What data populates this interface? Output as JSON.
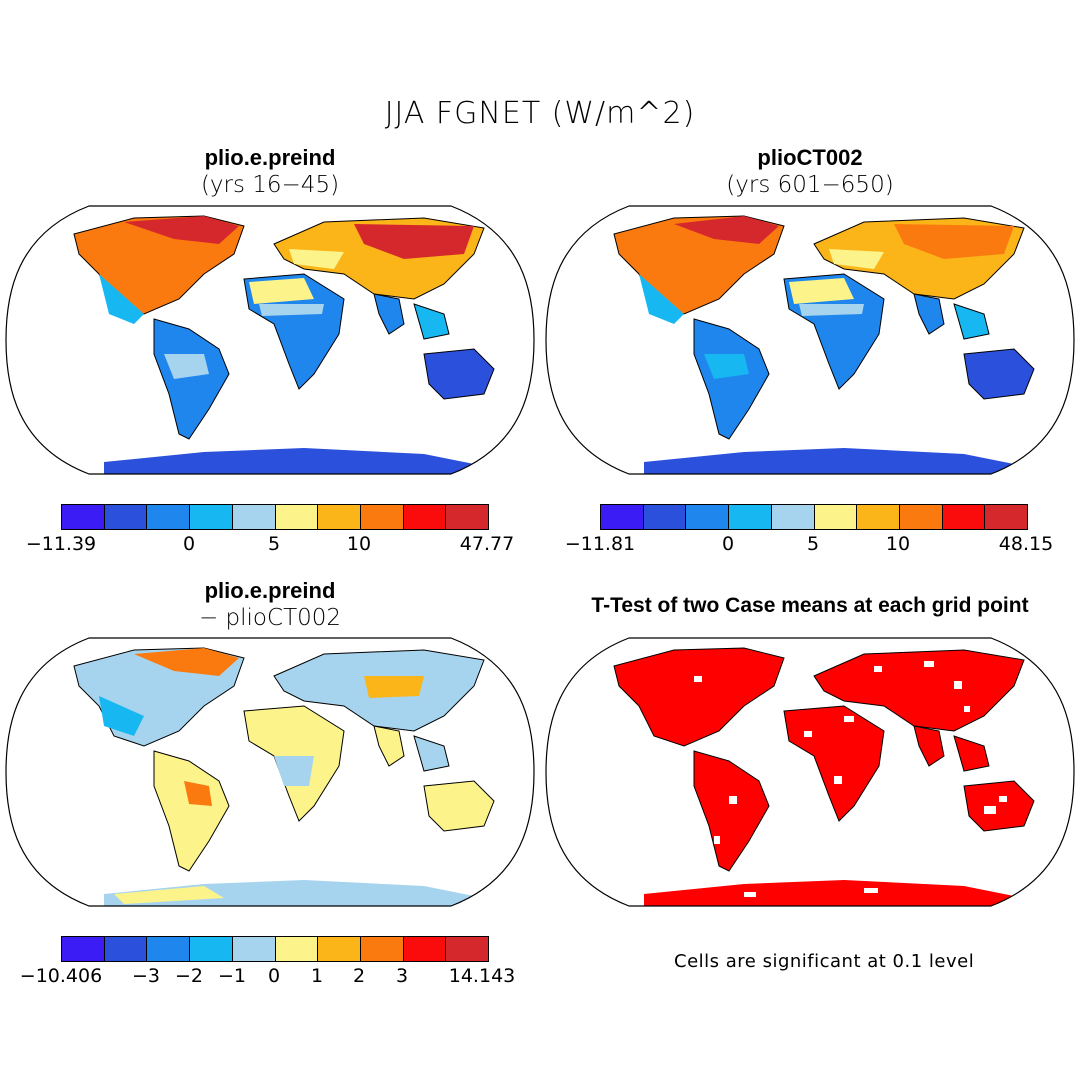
{
  "title": "JJA FGNET (W/m^2)",
  "palette": [
    "#3b1cf5",
    "#2b50dc",
    "#1f86ee",
    "#17b8f2",
    "#a6d4ef",
    "#fcf38a",
    "#fbb518",
    "#fa7a10",
    "#fa0c0c",
    "#d5282c"
  ],
  "significance_color": "#ff0000",
  "panels": [
    {
      "title": "plio.e.preind",
      "subtitle": "(yrs 16−45)",
      "ticks": [
        "−11.39",
        "0",
        "5",
        "10",
        "47.77"
      ]
    },
    {
      "title": "plioCT002",
      "subtitle": "(yrs 601−650)",
      "ticks": [
        "−11.81",
        "0",
        "5",
        "10",
        "48.15"
      ]
    },
    {
      "title": "plio.e.preind",
      "subtitle": "− plioCT002",
      "ticks": [
        "−10.406",
        "−3",
        "−2",
        "−1",
        "0",
        "1",
        "2",
        "3",
        "14.143"
      ]
    },
    {
      "title": "T-Test of two Case means at each grid point",
      "note": "Cells are significant at 0.1 level"
    }
  ]
}
